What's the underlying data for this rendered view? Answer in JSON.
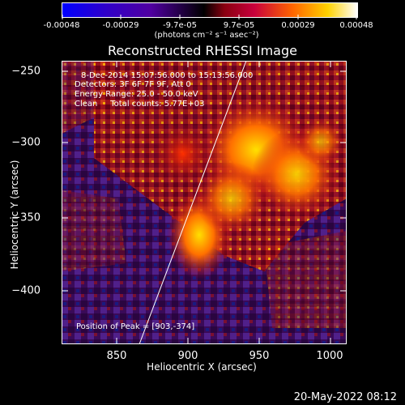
{
  "colorbar": {
    "ticks": [
      "-0.00048",
      "-0.00029",
      "-9.7e-05",
      "9.7e-05",
      "0.00029",
      "0.00048"
    ],
    "units_label": "(photons cm⁻² s⁻¹ asec⁻²)",
    "colors": [
      "#0000ff",
      "#5000a0",
      "#c8003c",
      "#ff6400",
      "#ffd200",
      "#ffffff"
    ]
  },
  "title": "Reconstructed RHESSI Image",
  "info": {
    "time_range": "8-Dec-2014 15:07:56.000 to 15:13:56.000",
    "detectors": "Detectors: 3F 6F 7F 9F, Att 0",
    "energy_range": "Energy Range: 25.0 - 50.0 keV",
    "algorithm": "Clean     Total counts: 5.77E+03",
    "peak": "Position of Peak = [903,-374]"
  },
  "axes": {
    "xlabel": "Heliocentric X (arcsec)",
    "ylabel": "Heliocentric Y (arcsec)",
    "xticks": [
      "850",
      "900",
      "950",
      "1000"
    ],
    "yticks": [
      "−250",
      "−300",
      "−350",
      "−400"
    ]
  },
  "footer": "20-May-2022 08:12"
}
